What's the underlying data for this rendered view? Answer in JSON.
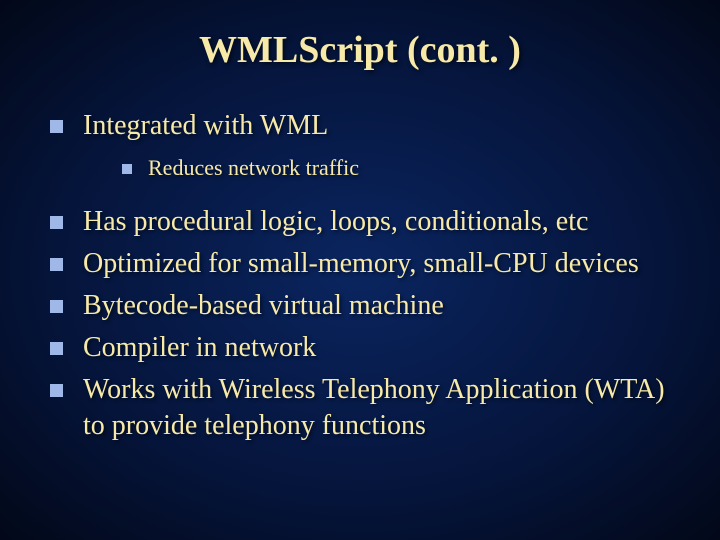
{
  "slide": {
    "title": "WMLScript (cont. )",
    "background_gradient": {
      "center": "#0a2560",
      "mid": "#05143a",
      "outer": "#020818"
    },
    "title_color": "#f7e9a8",
    "text_color": "#f7e9a8",
    "bullet_color": "#9fb8e8",
    "title_fontsize": 38,
    "level1_fontsize": 28,
    "level2_fontsize": 22,
    "bullets": [
      {
        "text": "Integrated with WML",
        "children": [
          {
            "text": "Reduces network traffic"
          }
        ]
      },
      {
        "text": "Has procedural logic, loops, conditionals, etc"
      },
      {
        "text": "Optimized for small-memory, small-CPU devices"
      },
      {
        "text": "Bytecode-based virtual machine"
      },
      {
        "text": "Compiler in network"
      },
      {
        "text": "Works with Wireless Telephony Application (WTA) to provide telephony functions"
      }
    ]
  }
}
